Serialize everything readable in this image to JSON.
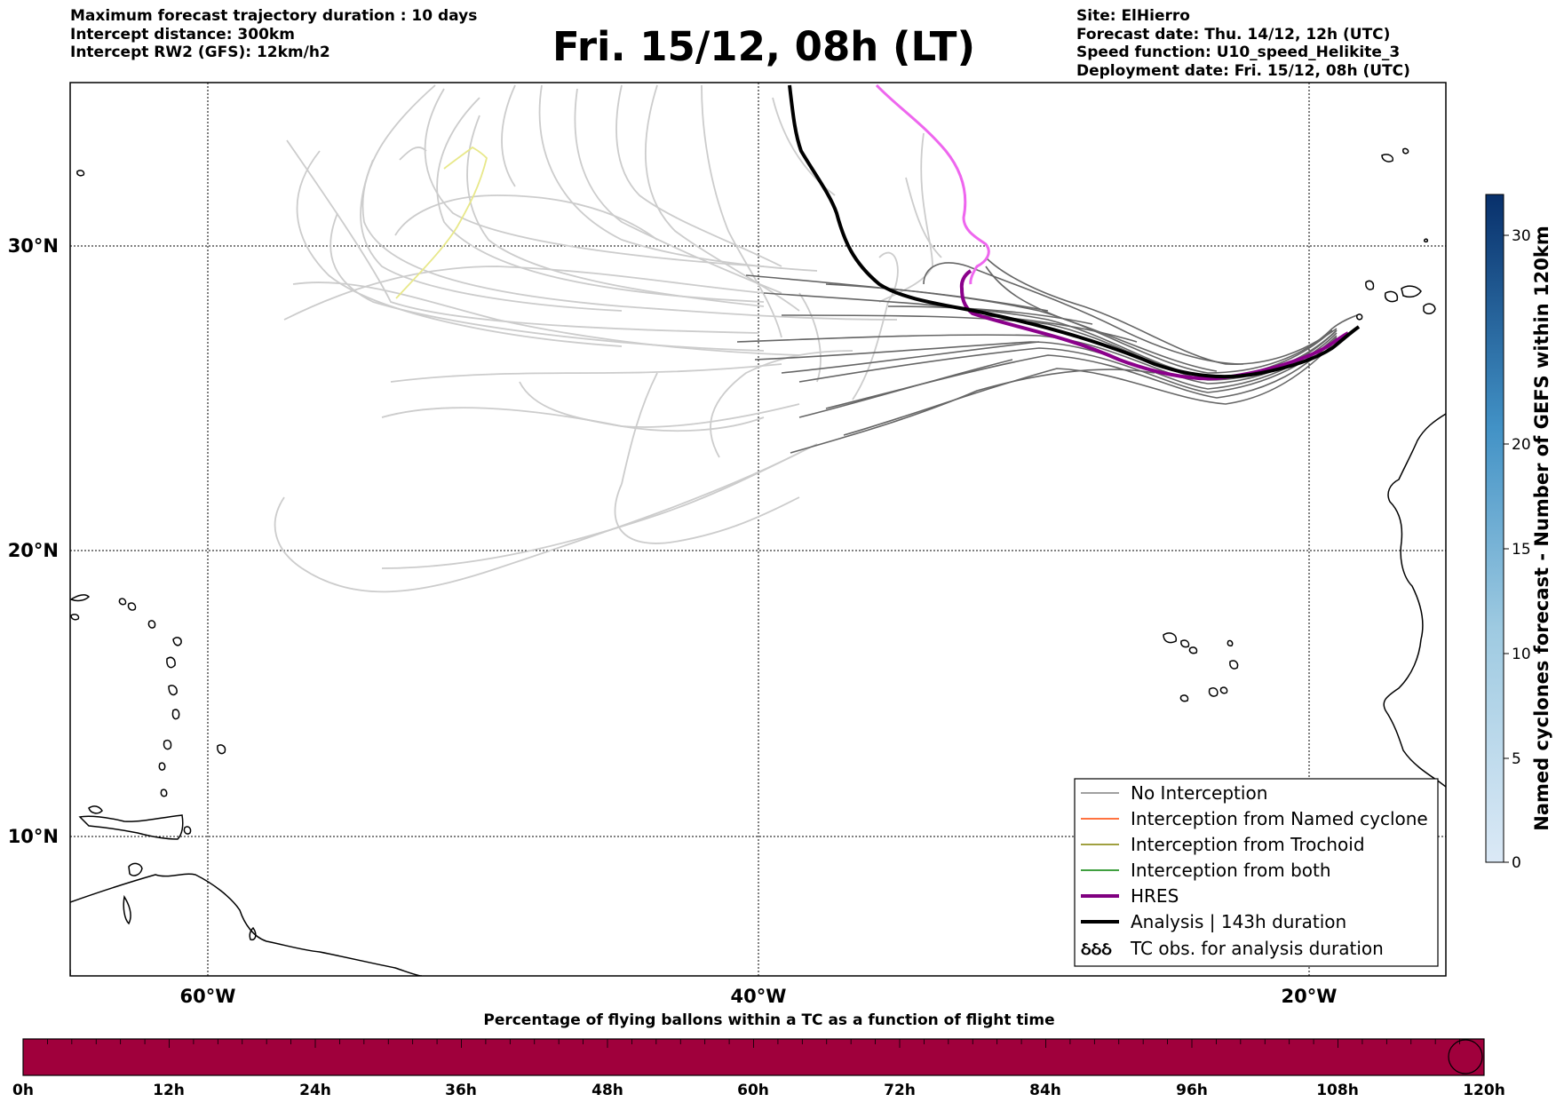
{
  "header": {
    "left_lines": [
      "Maximum forecast trajectory duration : 10 days",
      "Intercept distance: 300km",
      "Intercept RW2 (GFS):  12km/h2"
    ],
    "title": "Fri. 15/12, 08h (LT)",
    "right_lines": [
      "Site: ElHierro",
      "Forecast date: Thu. 14/12, 12h (UTC)",
      "Speed function: U10_speed_Helikite_3",
      "Deployment date: Fri. 15/12, 08h (UTC)"
    ]
  },
  "map": {
    "lat_labels": [
      "30°N",
      "20°N",
      "10°N"
    ],
    "lon_labels": [
      "60°W",
      "40°W",
      "20°W"
    ]
  },
  "legend": {
    "items": [
      {
        "label": "No Interception",
        "color": "#808080"
      },
      {
        "label": "Interception from Named cyclone",
        "color": "#ff4500"
      },
      {
        "label": "Interception from Trochoid",
        "color": "#808000"
      },
      {
        "label": "Interception from both",
        "color": "#008000"
      },
      {
        "label": "HRES",
        "color": "#800080"
      },
      {
        "label": "Analysis | 143h duration",
        "color": "#000000"
      },
      {
        "label": "TC obs. for analysis duration",
        "color": "#000000",
        "icon": "cyclone-symbol-icon"
      }
    ],
    "tc_symbol": "ઠઠઠ"
  },
  "colorbar": {
    "label": "Named cyclones forecast - Number of GEFS within 120km",
    "ticks": [
      "0",
      "5",
      "10",
      "15",
      "20",
      "30"
    ],
    "colors": [
      "#dbe9f6",
      "#08306b"
    ]
  },
  "time_bar": {
    "title": "Percentage of flying ballons within a TC as a function of flight time",
    "ticks": [
      "0h",
      "12h",
      "24h",
      "36h",
      "48h",
      "60h",
      "72h",
      "84h",
      "96h",
      "108h",
      "120h"
    ],
    "color": "#a0003c"
  },
  "colors": {
    "hres_magenta": "#ee66ee",
    "hres_purple": "#8b008b",
    "analysis": "#000000",
    "gefs_dark": "#666666",
    "gefs_light": "#cccccc",
    "trochoid_yellow": "#e8e88a"
  }
}
